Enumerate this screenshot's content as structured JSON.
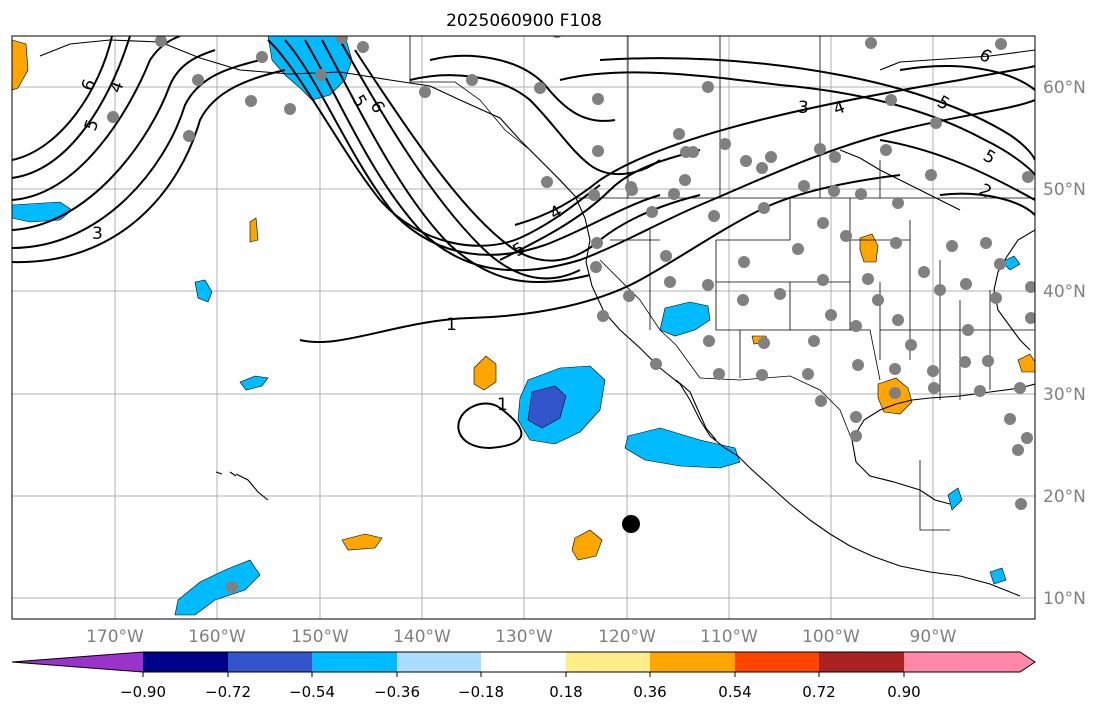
{
  "title": "2025060900 F108",
  "map": {
    "projection": "plate-carree",
    "lon_range": [
      180,
      278
    ],
    "lat_range": [
      8,
      65
    ],
    "gridlines": true,
    "longitude_labels": [
      "170°W",
      "160°W",
      "150°W",
      "140°W",
      "130°W",
      "120°W",
      "110°W",
      "100°W",
      "90°W"
    ],
    "latitude_labels": [
      "10°N",
      "20°N",
      "30°N",
      "40°N",
      "50°N",
      "60°N"
    ],
    "contour_labels": [
      "6",
      "5",
      "4",
      "3",
      "5",
      "6",
      "3",
      "4",
      "5",
      "5",
      "6",
      "2",
      "1",
      "5",
      "4",
      "1"
    ]
  },
  "colorbar": {
    "ticks": [
      "−0.90",
      "−0.72",
      "−0.54",
      "−0.36",
      "−0.18",
      "0.18",
      "0.36",
      "0.54",
      "0.72",
      "0.90"
    ],
    "colors": [
      "#9933cc",
      "#000088",
      "#3355cc",
      "#00bbff",
      "#aaddff",
      "#ffffff",
      "#ffee88",
      "#ffa500",
      "#ff4400",
      "#aa2222",
      "#ff88aa"
    ],
    "extend": "both"
  },
  "colors": {
    "negative_fill": "#00bbff",
    "strong_negative_fill": "#3355cc",
    "positive_fill": "#ffa500",
    "station_marker": "#808080",
    "gridline": "#b0b0b0"
  }
}
